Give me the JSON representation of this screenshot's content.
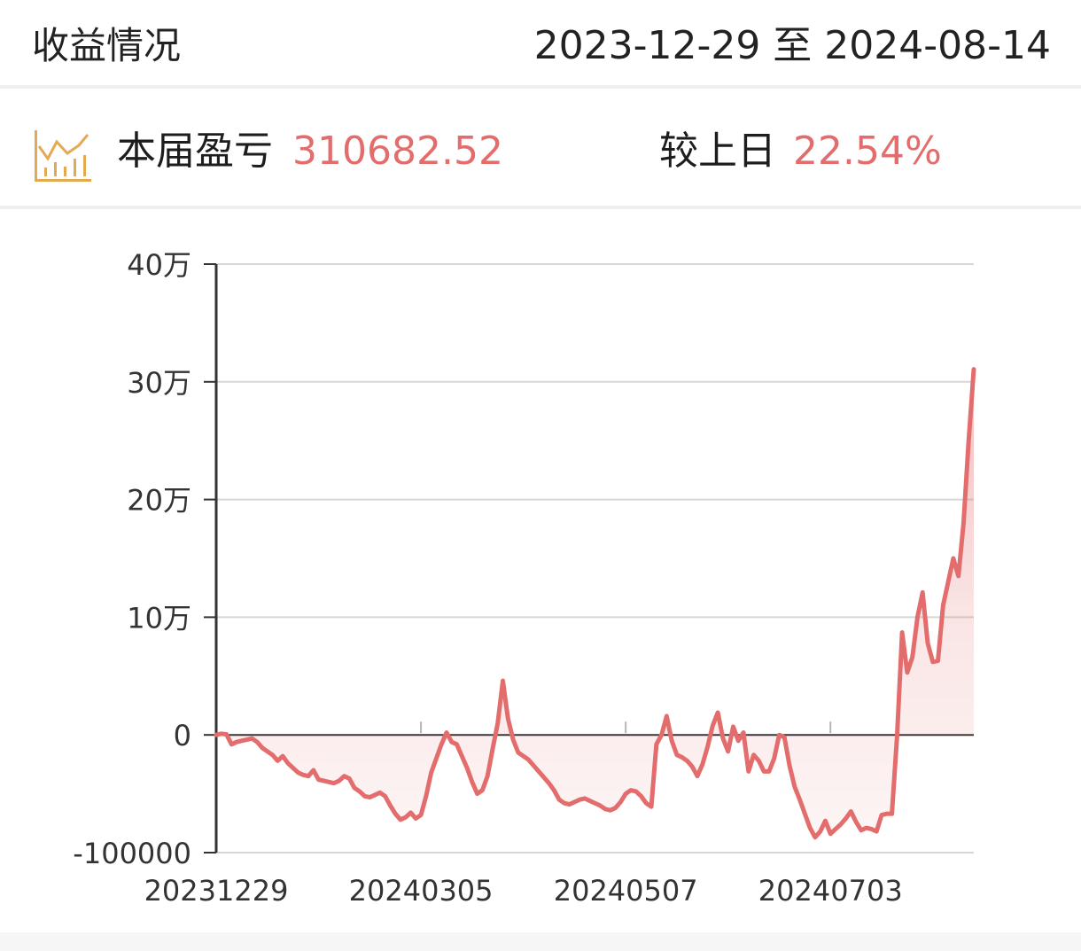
{
  "header": {
    "title": "收益情况",
    "date_range": "2023-12-29 至 2024-08-14"
  },
  "summary": {
    "icon": "bar-chart-icon",
    "pnl_label": "本届盈亏",
    "pnl_value": "310682.52",
    "compare_label": "较上日",
    "compare_value": "22.54%"
  },
  "colors": {
    "accent": "#e36c6c",
    "icon_color": "#e4aa52",
    "grid": "#d7d7d7",
    "axis": "#333333"
  },
  "chart_data": {
    "type": "area",
    "title": "",
    "xlabel": "",
    "ylabel": "",
    "ylim": [
      -100000,
      400000
    ],
    "y_ticks": [
      {
        "value": 400000,
        "label": "40万"
      },
      {
        "value": 300000,
        "label": "30万"
      },
      {
        "value": 200000,
        "label": "20万"
      },
      {
        "value": 100000,
        "label": "10万"
      },
      {
        "value": 0,
        "label": "0"
      },
      {
        "value": -100000,
        "label": "-100000"
      }
    ],
    "x_ticks": [
      {
        "index": 0,
        "label": "20231229"
      },
      {
        "index": 40,
        "label": "20240305"
      },
      {
        "index": 80,
        "label": "20240507"
      },
      {
        "index": 120,
        "label": "20240703"
      }
    ],
    "series": [
      {
        "values": [
          0,
          1000,
          500,
          -8000,
          -6000,
          -5000,
          -4000,
          -3000,
          -6000,
          -11000,
          -14000,
          -17000,
          -22000,
          -18000,
          -24000,
          -28000,
          -32000,
          -34000,
          -35000,
          -30000,
          -38000,
          -39000,
          -40000,
          -41000,
          -39000,
          -35000,
          -37000,
          -45000,
          -48000,
          -52000,
          -53000,
          -51000,
          -49000,
          -52000,
          -60000,
          -67000,
          -72000,
          -70000,
          -66000,
          -71000,
          -68000,
          -52000,
          -32000,
          -20000,
          -8000,
          2000,
          -6000,
          -8000,
          -18000,
          -28000,
          -40000,
          -50000,
          -47000,
          -35000,
          -12000,
          10000,
          46000,
          14000,
          -4000,
          -15000,
          -18000,
          -21000,
          -26000,
          -31000,
          -36000,
          -41000,
          -47000,
          -55000,
          -58000,
          -59000,
          -57000,
          -55000,
          -54000,
          -56000,
          -58000,
          -60000,
          -63000,
          -64000,
          -62000,
          -57000,
          -50000,
          -47000,
          -48000,
          -52000,
          -58000,
          -61000,
          -8000,
          0,
          16000,
          -5000,
          -17000,
          -19000,
          -22000,
          -27000,
          -35000,
          -25000,
          -10000,
          8000,
          19000,
          -3000,
          -14000,
          7000,
          -5000,
          2000,
          -31000,
          -17000,
          -22000,
          -31000,
          -31000,
          -20000,
          0,
          -2000,
          -26000,
          -44000,
          -55000,
          -67000,
          -79000,
          -87000,
          -82000,
          -73000,
          -84000,
          -80000,
          -76000,
          -71000,
          -65000,
          -74000,
          -81000,
          -79000,
          -80000,
          -82000,
          -68000,
          -67000,
          -67000,
          -2000,
          87000,
          53000,
          66000,
          100000,
          121000,
          78000,
          62000,
          63000,
          110000,
          130000,
          150000,
          135000,
          180000,
          250000,
          310683
        ]
      }
    ]
  }
}
